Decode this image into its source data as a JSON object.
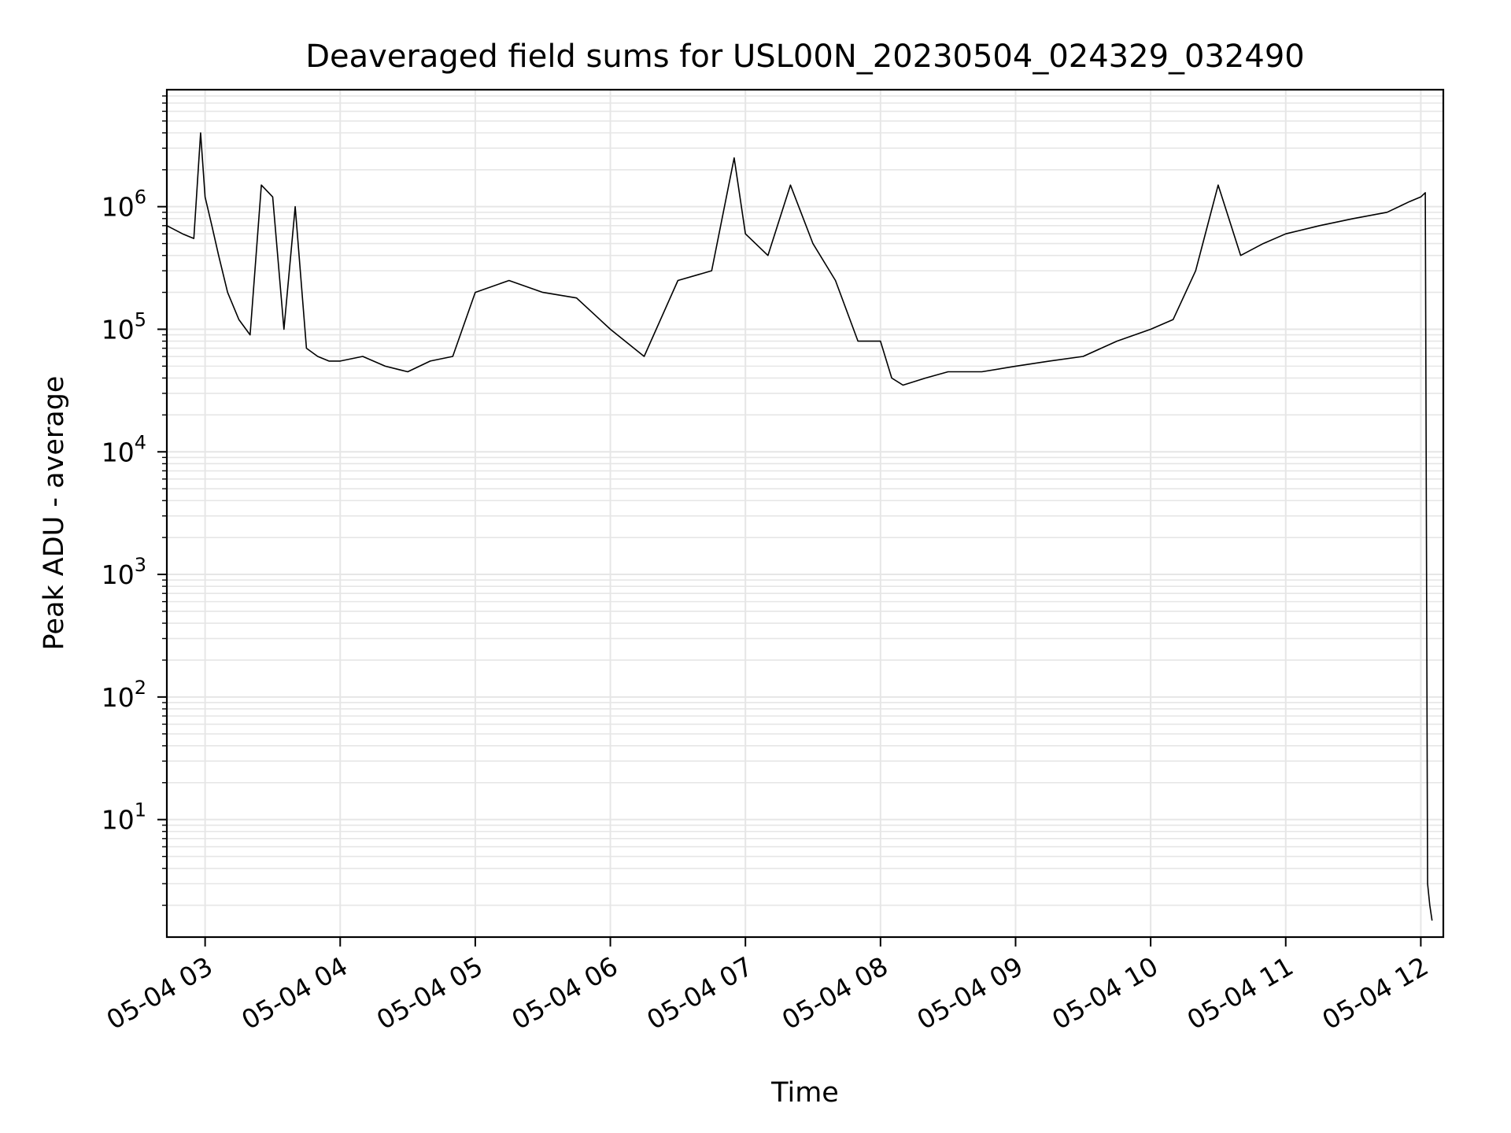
{
  "chart_data": {
    "type": "line",
    "title": "Deaveraged field sums for USL00N_20230504_024329_032490",
    "xlabel": "Time",
    "ylabel": "Peak ADU - average",
    "yscale": "log",
    "ylim": [
      1.1,
      9000000
    ],
    "xlim": [
      "2023-05-04 02:43",
      "2023-05-04 12:10"
    ],
    "grid": true,
    "line_color": "#000000",
    "grid_color": "#e6e6e6",
    "x_ticks": [
      "05-04 03",
      "05-04 04",
      "05-04 05",
      "05-04 06",
      "05-04 07",
      "05-04 08",
      "05-04 09",
      "05-04 10",
      "05-04 11",
      "05-04 12"
    ],
    "y_ticks": [
      {
        "base": "10",
        "exp": "1"
      },
      {
        "base": "10",
        "exp": "2"
      },
      {
        "base": "10",
        "exp": "3"
      },
      {
        "base": "10",
        "exp": "4"
      },
      {
        "base": "10",
        "exp": "5"
      },
      {
        "base": "10",
        "exp": "6"
      }
    ],
    "series": [
      {
        "x": [
          "02:43",
          "02:50",
          "02:55",
          "02:58",
          "03:00",
          "03:03",
          "03:06",
          "03:10",
          "03:15",
          "03:20",
          "03:25",
          "03:30",
          "03:35",
          "03:40",
          "03:45",
          "03:50",
          "03:55",
          "04:00",
          "04:10",
          "04:20",
          "04:30",
          "04:40",
          "04:50",
          "05:00",
          "05:15",
          "05:30",
          "05:45",
          "06:00",
          "06:15",
          "06:30",
          "06:45",
          "06:55",
          "07:00",
          "07:10",
          "07:20",
          "07:30",
          "07:40",
          "07:50",
          "08:00",
          "08:05",
          "08:10",
          "08:20",
          "08:30",
          "08:45",
          "09:00",
          "09:15",
          "09:30",
          "09:45",
          "10:00",
          "10:10",
          "10:20",
          "10:30",
          "10:40",
          "10:50",
          "11:00",
          "11:15",
          "11:30",
          "11:45",
          "11:55",
          "12:00",
          "12:02",
          "12:03",
          "12:04",
          "12:05"
        ],
        "y": [
          700000,
          600000,
          550000,
          4000000,
          1200000,
          700000,
          400000,
          200000,
          120000,
          90000,
          1500000,
          1200000,
          100000,
          1000000,
          70000,
          60000,
          55000,
          55000,
          60000,
          50000,
          45000,
          55000,
          60000,
          200000,
          250000,
          200000,
          180000,
          100000,
          60000,
          250000,
          300000,
          2500000,
          600000,
          400000,
          1500000,
          500000,
          250000,
          80000,
          80000,
          40000,
          35000,
          40000,
          45000,
          45000,
          50000,
          55000,
          60000,
          80000,
          100000,
          120000,
          300000,
          1500000,
          400000,
          500000,
          600000,
          700000,
          800000,
          900000,
          1100000,
          1200000,
          1300000,
          3,
          2,
          1.5
        ]
      }
    ]
  }
}
